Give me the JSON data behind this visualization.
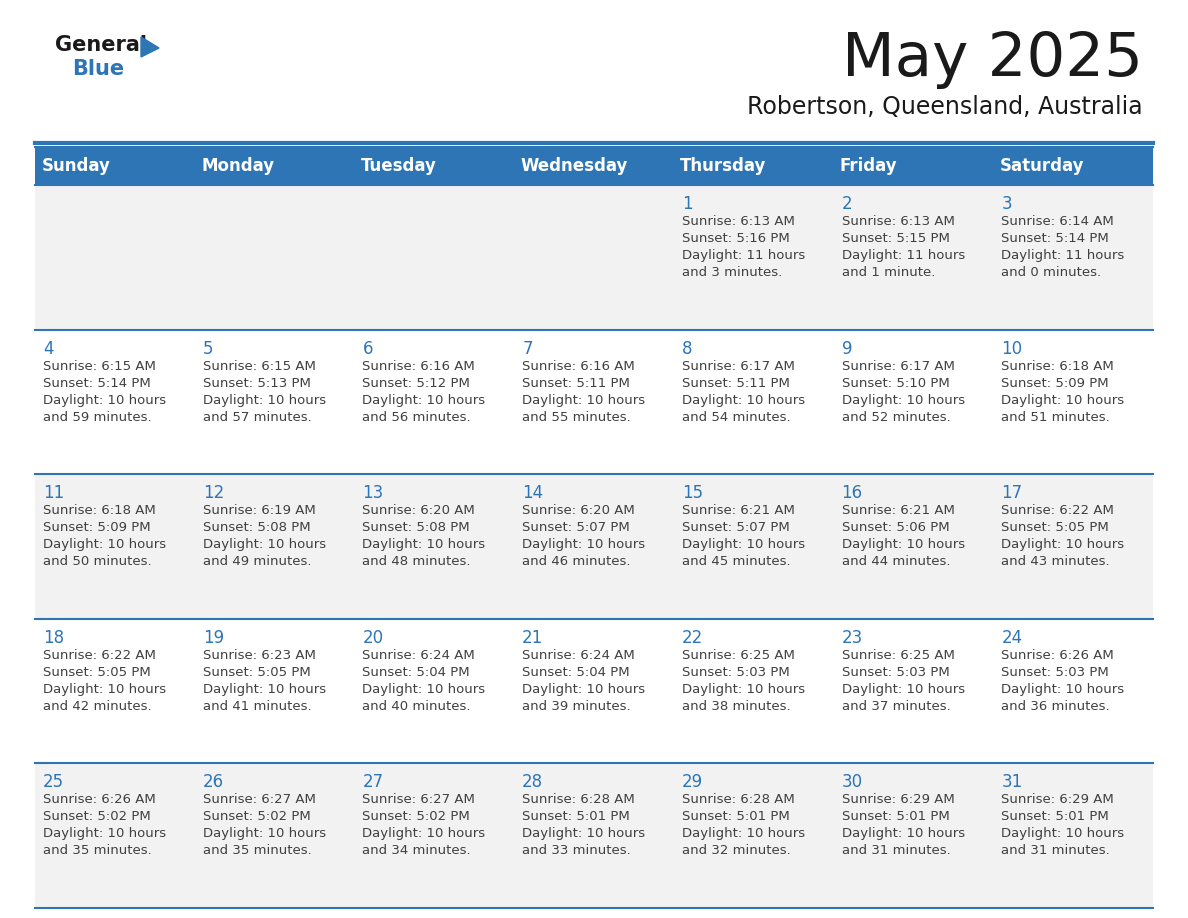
{
  "title": "May 2025",
  "subtitle": "Robertson, Queensland, Australia",
  "days_of_week": [
    "Sunday",
    "Monday",
    "Tuesday",
    "Wednesday",
    "Thursday",
    "Friday",
    "Saturday"
  ],
  "header_bg": "#2E75B6",
  "header_text_color": "#FFFFFF",
  "cell_bg_odd": "#F2F2F2",
  "cell_bg_even": "#FFFFFF",
  "cell_border_color": "#2E75B6",
  "day_number_color": "#2E75B6",
  "cell_text_color": "#404040",
  "title_color": "#1a1a1a",
  "logo_black_color": "#1a1a1a",
  "logo_blue_color": "#2E75B6",
  "calendar_data": [
    [
      {
        "day": null,
        "sunrise": null,
        "sunset": null,
        "daylight": null
      },
      {
        "day": null,
        "sunrise": null,
        "sunset": null,
        "daylight": null
      },
      {
        "day": null,
        "sunrise": null,
        "sunset": null,
        "daylight": null
      },
      {
        "day": null,
        "sunrise": null,
        "sunset": null,
        "daylight": null
      },
      {
        "day": 1,
        "sunrise": "6:13 AM",
        "sunset": "5:16 PM",
        "daylight": "11 hours and 3 minutes."
      },
      {
        "day": 2,
        "sunrise": "6:13 AM",
        "sunset": "5:15 PM",
        "daylight": "11 hours and 1 minute."
      },
      {
        "day": 3,
        "sunrise": "6:14 AM",
        "sunset": "5:14 PM",
        "daylight": "11 hours and 0 minutes."
      }
    ],
    [
      {
        "day": 4,
        "sunrise": "6:15 AM",
        "sunset": "5:14 PM",
        "daylight": "10 hours and 59 minutes."
      },
      {
        "day": 5,
        "sunrise": "6:15 AM",
        "sunset": "5:13 PM",
        "daylight": "10 hours and 57 minutes."
      },
      {
        "day": 6,
        "sunrise": "6:16 AM",
        "sunset": "5:12 PM",
        "daylight": "10 hours and 56 minutes."
      },
      {
        "day": 7,
        "sunrise": "6:16 AM",
        "sunset": "5:11 PM",
        "daylight": "10 hours and 55 minutes."
      },
      {
        "day": 8,
        "sunrise": "6:17 AM",
        "sunset": "5:11 PM",
        "daylight": "10 hours and 54 minutes."
      },
      {
        "day": 9,
        "sunrise": "6:17 AM",
        "sunset": "5:10 PM",
        "daylight": "10 hours and 52 minutes."
      },
      {
        "day": 10,
        "sunrise": "6:18 AM",
        "sunset": "5:09 PM",
        "daylight": "10 hours and 51 minutes."
      }
    ],
    [
      {
        "day": 11,
        "sunrise": "6:18 AM",
        "sunset": "5:09 PM",
        "daylight": "10 hours and 50 minutes."
      },
      {
        "day": 12,
        "sunrise": "6:19 AM",
        "sunset": "5:08 PM",
        "daylight": "10 hours and 49 minutes."
      },
      {
        "day": 13,
        "sunrise": "6:20 AM",
        "sunset": "5:08 PM",
        "daylight": "10 hours and 48 minutes."
      },
      {
        "day": 14,
        "sunrise": "6:20 AM",
        "sunset": "5:07 PM",
        "daylight": "10 hours and 46 minutes."
      },
      {
        "day": 15,
        "sunrise": "6:21 AM",
        "sunset": "5:07 PM",
        "daylight": "10 hours and 45 minutes."
      },
      {
        "day": 16,
        "sunrise": "6:21 AM",
        "sunset": "5:06 PM",
        "daylight": "10 hours and 44 minutes."
      },
      {
        "day": 17,
        "sunrise": "6:22 AM",
        "sunset": "5:05 PM",
        "daylight": "10 hours and 43 minutes."
      }
    ],
    [
      {
        "day": 18,
        "sunrise": "6:22 AM",
        "sunset": "5:05 PM",
        "daylight": "10 hours and 42 minutes."
      },
      {
        "day": 19,
        "sunrise": "6:23 AM",
        "sunset": "5:05 PM",
        "daylight": "10 hours and 41 minutes."
      },
      {
        "day": 20,
        "sunrise": "6:24 AM",
        "sunset": "5:04 PM",
        "daylight": "10 hours and 40 minutes."
      },
      {
        "day": 21,
        "sunrise": "6:24 AM",
        "sunset": "5:04 PM",
        "daylight": "10 hours and 39 minutes."
      },
      {
        "day": 22,
        "sunrise": "6:25 AM",
        "sunset": "5:03 PM",
        "daylight": "10 hours and 38 minutes."
      },
      {
        "day": 23,
        "sunrise": "6:25 AM",
        "sunset": "5:03 PM",
        "daylight": "10 hours and 37 minutes."
      },
      {
        "day": 24,
        "sunrise": "6:26 AM",
        "sunset": "5:03 PM",
        "daylight": "10 hours and 36 minutes."
      }
    ],
    [
      {
        "day": 25,
        "sunrise": "6:26 AM",
        "sunset": "5:02 PM",
        "daylight": "10 hours and 35 minutes."
      },
      {
        "day": 26,
        "sunrise": "6:27 AM",
        "sunset": "5:02 PM",
        "daylight": "10 hours and 35 minutes."
      },
      {
        "day": 27,
        "sunrise": "6:27 AM",
        "sunset": "5:02 PM",
        "daylight": "10 hours and 34 minutes."
      },
      {
        "day": 28,
        "sunrise": "6:28 AM",
        "sunset": "5:01 PM",
        "daylight": "10 hours and 33 minutes."
      },
      {
        "day": 29,
        "sunrise": "6:28 AM",
        "sunset": "5:01 PM",
        "daylight": "10 hours and 32 minutes."
      },
      {
        "day": 30,
        "sunrise": "6:29 AM",
        "sunset": "5:01 PM",
        "daylight": "10 hours and 31 minutes."
      },
      {
        "day": 31,
        "sunrise": "6:29 AM",
        "sunset": "5:01 PM",
        "daylight": "10 hours and 31 minutes."
      }
    ]
  ]
}
